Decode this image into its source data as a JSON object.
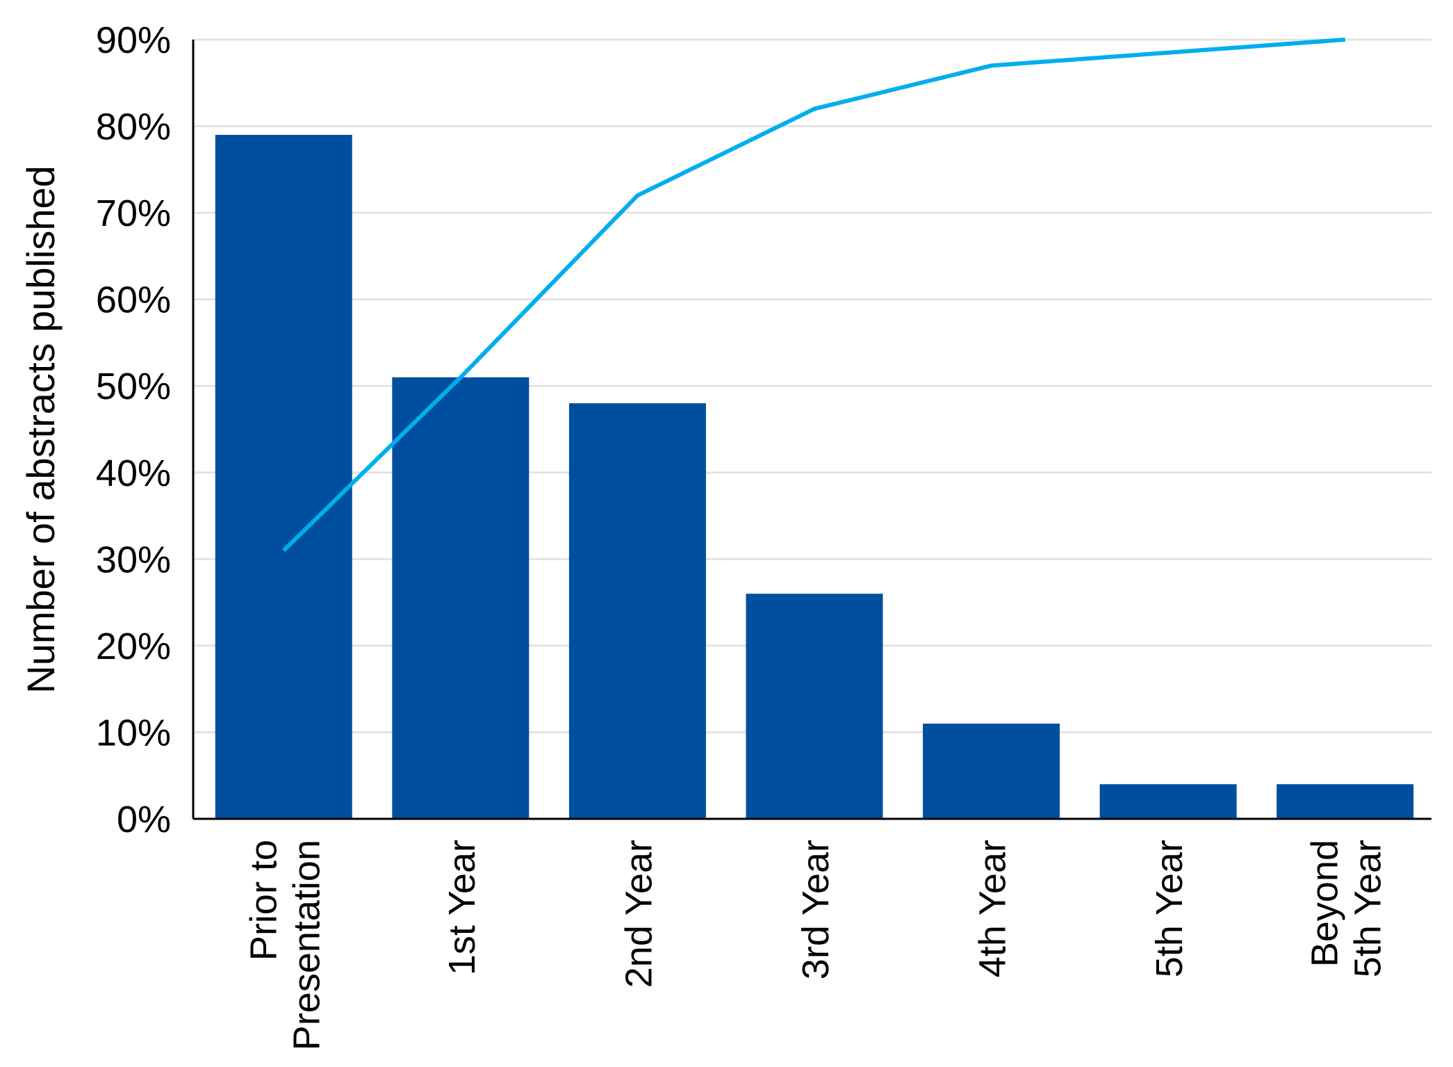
{
  "chart_data": {
    "type": "bar",
    "ylabel": "Number of abstracts published",
    "xlabel": "",
    "categories": [
      [
        "Prior to",
        "Presentation"
      ],
      [
        "1st Year"
      ],
      [
        "2nd Year"
      ],
      [
        "3rd Year"
      ],
      [
        "4th Year"
      ],
      [
        "5th Year"
      ],
      [
        "Beyond",
        "5th Year"
      ]
    ],
    "series": [
      {
        "type": "bar",
        "values": [
          79,
          51,
          48,
          26,
          11,
          4,
          4
        ]
      },
      {
        "type": "line",
        "values": [
          31,
          51,
          72,
          82,
          87,
          88.5,
          90
        ]
      }
    ],
    "ylim": [
      0,
      90
    ],
    "yticks": [
      "0%",
      "10%",
      "20%",
      "30%",
      "40%",
      "50%",
      "60%",
      "70%",
      "80%",
      "90%"
    ],
    "grid": true,
    "legend": "none",
    "colors": {
      "bar": "#004f9f",
      "line": "#00aeef",
      "grid": "#e3e3e3",
      "axis": "#000000"
    }
  }
}
